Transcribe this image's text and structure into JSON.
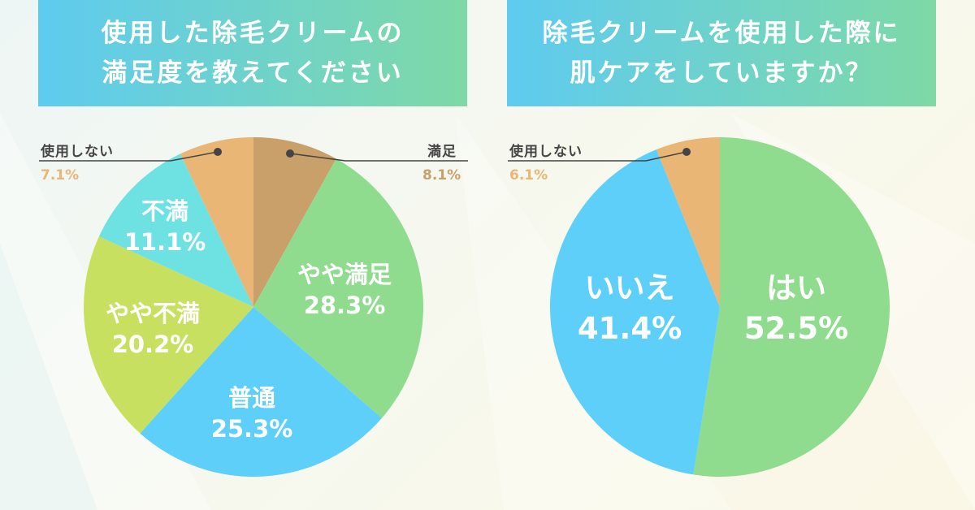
{
  "charts": [
    {
      "title_lines": [
        "使用した除毛クリームの",
        "満足度を教えてください"
      ],
      "external_labels": [
        {
          "name": "使用しない",
          "value": "7.1%",
          "color": "#e9b675"
        },
        {
          "name": "満足",
          "value": "8.1%",
          "color": "#c9a06a"
        }
      ],
      "inner_labels": [
        {
          "name": "やや満足",
          "value": "28.3%"
        },
        {
          "name": "普通",
          "value": "25.3%"
        },
        {
          "name": "やや不満",
          "value": "20.2%"
        },
        {
          "name": "不満",
          "value": "11.1%"
        }
      ]
    },
    {
      "title_lines": [
        "除毛クリームを使用した際に",
        "肌ケアをしていますか？"
      ],
      "external_labels": [
        {
          "name": "使用しない",
          "value": "6.1%",
          "color": "#e9b675"
        }
      ],
      "inner_labels": [
        {
          "name": "はい",
          "value": "52.5%"
        },
        {
          "name": "いいえ",
          "value": "41.4%"
        }
      ]
    }
  ],
  "chart_data": [
    {
      "type": "pie",
      "title": "使用した除毛クリームの満足度を教えてください",
      "slices": [
        {
          "label": "満足",
          "value": 8.1,
          "color": "#c9a06a"
        },
        {
          "label": "やや満足",
          "value": 28.3,
          "color": "#8fdc8f"
        },
        {
          "label": "普通",
          "value": 25.3,
          "color": "#5ecff9"
        },
        {
          "label": "やや不満",
          "value": 20.2,
          "color": "#c7e060"
        },
        {
          "label": "不満",
          "value": 11.1,
          "color": "#6ee2e2"
        },
        {
          "label": "使用しない",
          "value": 7.1,
          "color": "#e9b675"
        }
      ]
    },
    {
      "type": "pie",
      "title": "除毛クリームを使用した際に肌ケアをしていますか？",
      "slices": [
        {
          "label": "はい",
          "value": 52.5,
          "color": "#8fdc8f"
        },
        {
          "label": "いいえ",
          "value": 41.4,
          "color": "#5ecff9"
        },
        {
          "label": "使用しない",
          "value": 6.1,
          "color": "#e9b675"
        }
      ]
    }
  ]
}
